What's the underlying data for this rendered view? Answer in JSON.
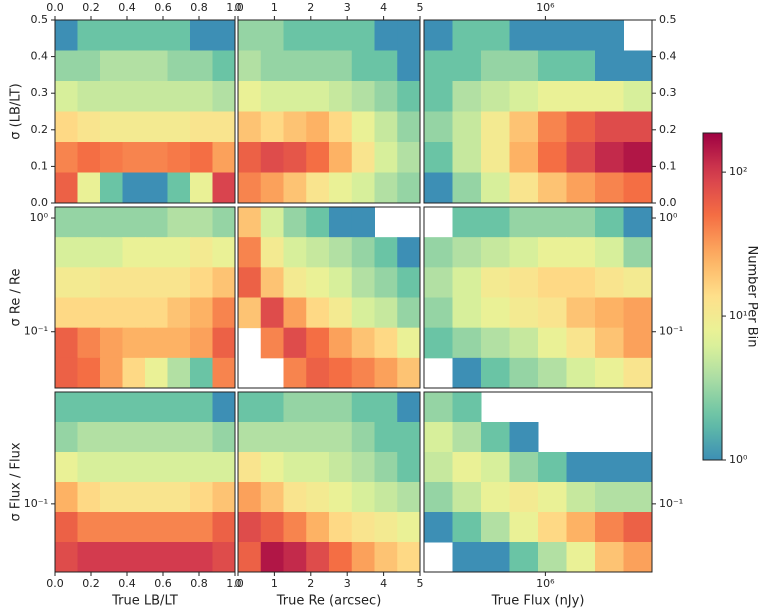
{
  "chart_data": {
    "type": "hexbin",
    "xaxes": [
      {
        "label": "True LB/LT",
        "xlim": [
          0,
          1
        ],
        "xticks": [
          {
            "value": 0,
            "label": "0.0"
          },
          0.2,
          0.4,
          0.6,
          0.8,
          {
            "value": 1,
            "label": "1.0"
          }
        ]
      },
      {
        "label": "True Re (arcsec)",
        "xlim": [
          0,
          5
        ],
        "xticks": [
          0,
          1,
          2,
          3,
          4,
          5
        ]
      },
      {
        "label": "True Flux (nJy)",
        "log": true,
        "xlim": [
          130000,
          6000000
        ],
        "xticks": [
          {
            "value": 1000000,
            "label": "10⁶"
          }
        ]
      }
    ],
    "yaxes": [
      {
        "label": "σ (LB/LT)",
        "ylim": [
          0,
          0.5
        ],
        "yticks": [
          {
            "value": 0,
            "label": "0.0"
          },
          0.1,
          0.2,
          0.3,
          0.4,
          0.5
        ]
      },
      {
        "label": "σ Re / Re",
        "log": true,
        "ylim": [
          0.032,
          1.25
        ],
        "yticks": [
          {
            "value": 0.1,
            "label": "10⁻¹"
          },
          {
            "value": 1,
            "label": "10⁰"
          }
        ]
      },
      {
        "label": "σ Flux / Flux",
        "log": true,
        "ylim": [
          0.04,
          0.45
        ],
        "yticks": [
          {
            "value": 0.1,
            "label": "10⁻¹"
          }
        ]
      }
    ],
    "panels": [
      {
        "counts": [
          [
            1,
            2,
            2,
            2,
            2,
            2,
            1,
            1
          ],
          [
            3,
            3,
            4,
            4,
            4,
            3,
            3,
            2
          ],
          [
            6,
            5,
            5,
            5,
            5,
            5,
            5,
            4
          ],
          [
            15,
            12,
            10,
            10,
            10,
            10,
            12,
            12
          ],
          [
            40,
            50,
            45,
            40,
            40,
            45,
            50,
            30
          ],
          [
            60,
            8,
            2,
            1,
            1,
            2,
            8,
            90
          ]
        ]
      },
      {
        "counts": [
          [
            3,
            3,
            2,
            2,
            2,
            2,
            1,
            1
          ],
          [
            4,
            3,
            3,
            3,
            3,
            2,
            2,
            1
          ],
          [
            8,
            6,
            6,
            6,
            5,
            4,
            3,
            2
          ],
          [
            20,
            15,
            20,
            25,
            15,
            8,
            5,
            3
          ],
          [
            60,
            80,
            70,
            50,
            25,
            12,
            6,
            4
          ],
          [
            40,
            30,
            20,
            12,
            8,
            6,
            4,
            3
          ]
        ]
      },
      {
        "counts": [
          [
            1,
            2,
            2,
            1,
            1,
            1,
            1,
            0
          ],
          [
            2,
            2,
            3,
            3,
            2,
            2,
            1,
            1
          ],
          [
            2,
            4,
            5,
            6,
            8,
            8,
            8,
            6
          ],
          [
            3,
            5,
            10,
            20,
            40,
            60,
            80,
            80
          ],
          [
            2,
            5,
            10,
            25,
            50,
            80,
            120,
            150
          ],
          [
            1,
            3,
            6,
            12,
            20,
            30,
            40,
            50
          ]
        ]
      },
      {
        "counts": [
          [
            3,
            3,
            3,
            3,
            3,
            4,
            4,
            3
          ],
          [
            6,
            6,
            6,
            8,
            8,
            8,
            10,
            8
          ],
          [
            10,
            10,
            12,
            12,
            12,
            12,
            15,
            20
          ],
          [
            15,
            15,
            15,
            15,
            15,
            20,
            25,
            40
          ],
          [
            60,
            40,
            30,
            25,
            25,
            25,
            30,
            60
          ],
          [
            60,
            50,
            30,
            15,
            8,
            4,
            2,
            40
          ]
        ]
      },
      {
        "counts": [
          [
            20,
            6,
            3,
            2,
            1,
            1,
            0,
            0
          ],
          [
            40,
            10,
            6,
            5,
            4,
            3,
            2,
            1
          ],
          [
            60,
            20,
            10,
            8,
            6,
            4,
            3,
            2
          ],
          [
            20,
            80,
            30,
            15,
            10,
            6,
            5,
            3
          ],
          [
            0,
            40,
            80,
            50,
            30,
            20,
            15,
            8
          ],
          [
            0,
            0,
            40,
            60,
            50,
            40,
            30,
            20
          ]
        ]
      },
      {
        "counts": [
          [
            0,
            2,
            2,
            3,
            3,
            3,
            2,
            1
          ],
          [
            3,
            4,
            5,
            6,
            8,
            8,
            6,
            3
          ],
          [
            4,
            6,
            10,
            12,
            15,
            15,
            12,
            10
          ],
          [
            3,
            6,
            8,
            10,
            12,
            20,
            25,
            30
          ],
          [
            2,
            3,
            4,
            5,
            8,
            12,
            20,
            30
          ],
          [
            0,
            1,
            2,
            3,
            4,
            6,
            8,
            12
          ]
        ]
      },
      {
        "counts": [
          [
            2,
            2,
            2,
            2,
            2,
            2,
            2,
            1
          ],
          [
            3,
            4,
            4,
            4,
            4,
            4,
            4,
            3
          ],
          [
            8,
            6,
            6,
            6,
            6,
            6,
            6,
            6
          ],
          [
            25,
            15,
            12,
            12,
            12,
            12,
            15,
            20
          ],
          [
            60,
            40,
            40,
            40,
            40,
            40,
            40,
            60
          ],
          [
            80,
            100,
            100,
            100,
            100,
            100,
            100,
            80
          ]
        ]
      },
      {
        "counts": [
          [
            2,
            2,
            3,
            3,
            3,
            2,
            2,
            1
          ],
          [
            4,
            4,
            4,
            4,
            4,
            3,
            2,
            2
          ],
          [
            12,
            8,
            6,
            6,
            5,
            4,
            3,
            2
          ],
          [
            30,
            20,
            12,
            10,
            8,
            6,
            5,
            4
          ],
          [
            80,
            60,
            40,
            25,
            15,
            12,
            10,
            8
          ],
          [
            60,
            150,
            120,
            80,
            50,
            30,
            20,
            15
          ]
        ]
      },
      {
        "counts": [
          [
            3,
            2,
            0,
            0,
            0,
            0,
            0,
            0
          ],
          [
            6,
            4,
            2,
            1,
            0,
            0,
            0,
            0
          ],
          [
            5,
            8,
            6,
            3,
            2,
            1,
            1,
            1
          ],
          [
            3,
            5,
            8,
            10,
            8,
            5,
            4,
            4
          ],
          [
            1,
            2,
            4,
            8,
            15,
            25,
            40,
            60
          ],
          [
            0,
            1,
            1,
            2,
            4,
            8,
            20,
            30
          ]
        ]
      }
    ],
    "colorbar": {
      "label": "Number Per Bin",
      "log": true,
      "lim": [
        1,
        187
      ],
      "ticks": [
        {
          "value": 1,
          "label": "10⁰"
        },
        {
          "value": 10,
          "label": "10¹"
        },
        {
          "value": 100,
          "label": "10²"
        }
      ]
    }
  }
}
